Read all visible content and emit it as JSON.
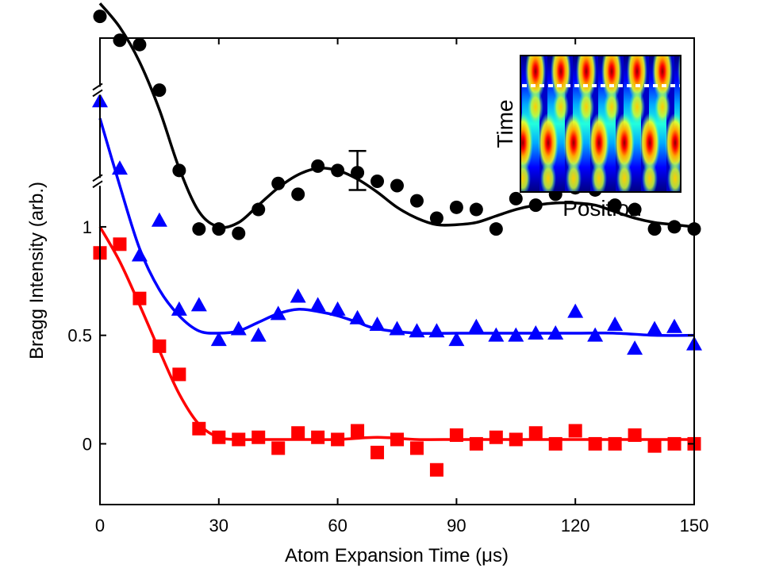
{
  "chart_data": {
    "type": "scatter",
    "xlabel": "Atom Expansion Time (μs)",
    "ylabel": "Bragg Intensity (arb.)",
    "xlim": [
      0,
      150
    ],
    "ylim": [
      -0.28,
      1.87
    ],
    "xticks": [
      0,
      30,
      60,
      90,
      120,
      150
    ],
    "xtick_labels": [
      "0",
      "30",
      "60",
      "90",
      "120",
      "150"
    ],
    "yticks": [
      0,
      0.5,
      1
    ],
    "ytick_labels": [
      "0",
      "0.5",
      "1"
    ],
    "axis_break_marks": [
      1.2,
      1.62
    ],
    "grid": false,
    "legend": "none",
    "series": [
      {
        "color": "#ff0000",
        "marker": "square",
        "x": [
          0,
          5,
          10,
          15,
          20,
          25,
          30,
          35,
          40,
          45,
          50,
          55,
          60,
          65,
          70,
          75,
          80,
          85,
          90,
          95,
          100,
          105,
          110,
          115,
          120,
          125,
          130,
          135,
          140,
          145,
          150
        ],
        "y": [
          0.88,
          0.92,
          0.67,
          0.45,
          0.32,
          0.07,
          0.03,
          0.02,
          0.03,
          -0.02,
          0.05,
          0.03,
          0.02,
          0.06,
          -0.04,
          0.02,
          -0.02,
          -0.12,
          0.04,
          0.0,
          0.03,
          0.02,
          0.05,
          0.0,
          0.06,
          0.0,
          0.0,
          0.04,
          -0.01,
          0.0,
          0.0
        ],
        "fit": {
          "x": [
            0,
            5,
            10,
            15,
            20,
            25,
            30,
            35,
            40,
            50,
            60,
            70,
            80,
            90,
            100,
            110,
            120,
            130,
            140,
            150
          ],
          "y": [
            1.0,
            0.84,
            0.64,
            0.43,
            0.23,
            0.09,
            0.03,
            0.02,
            0.02,
            0.02,
            0.02,
            0.03,
            0.02,
            0.02,
            0.02,
            0.02,
            0.02,
            0.02,
            0.02,
            0.02
          ]
        }
      },
      {
        "color": "#0000ff",
        "marker": "triangle",
        "x": [
          0,
          5,
          10,
          15,
          20,
          25,
          30,
          35,
          40,
          45,
          50,
          55,
          60,
          65,
          70,
          75,
          80,
          85,
          90,
          95,
          100,
          105,
          110,
          115,
          120,
          125,
          130,
          135,
          140,
          145,
          150
        ],
        "y": [
          1.58,
          1.27,
          0.87,
          1.03,
          0.62,
          0.64,
          0.48,
          0.53,
          0.5,
          0.6,
          0.68,
          0.64,
          0.62,
          0.58,
          0.55,
          0.53,
          0.52,
          0.52,
          0.48,
          0.54,
          0.5,
          0.5,
          0.51,
          0.51,
          0.61,
          0.5,
          0.55,
          0.44,
          0.53,
          0.54,
          0.46
        ],
        "fit": {
          "x": [
            0,
            5,
            10,
            15,
            20,
            25,
            30,
            35,
            40,
            45,
            50,
            55,
            60,
            65,
            70,
            80,
            90,
            100,
            110,
            120,
            130,
            140,
            150
          ],
          "y": [
            1.5,
            1.19,
            0.9,
            0.71,
            0.59,
            0.52,
            0.51,
            0.52,
            0.56,
            0.6,
            0.62,
            0.61,
            0.59,
            0.56,
            0.53,
            0.51,
            0.51,
            0.51,
            0.51,
            0.51,
            0.51,
            0.5,
            0.5
          ]
        }
      },
      {
        "color": "#000000",
        "marker": "circle",
        "x": [
          0,
          5,
          10,
          15,
          20,
          25,
          30,
          35,
          40,
          45,
          50,
          55,
          60,
          65,
          70,
          75,
          80,
          85,
          90,
          95,
          100,
          105,
          110,
          115,
          120,
          125,
          130,
          135,
          140,
          145,
          150
        ],
        "y": [
          1.97,
          1.86,
          1.84,
          1.63,
          1.26,
          0.99,
          0.99,
          0.97,
          1.08,
          1.2,
          1.15,
          1.28,
          1.26,
          1.25,
          1.21,
          1.19,
          1.12,
          1.04,
          1.09,
          1.08,
          0.99,
          1.13,
          1.1,
          1.15,
          1.18,
          1.17,
          1.1,
          1.08,
          0.99,
          1.0,
          0.99
        ],
        "fit": {
          "x": [
            0,
            5,
            10,
            15,
            20,
            25,
            30,
            35,
            40,
            45,
            50,
            55,
            60,
            65,
            70,
            75,
            80,
            85,
            90,
            95,
            100,
            105,
            110,
            115,
            120,
            125,
            130,
            135,
            140,
            145,
            150
          ],
          "y": [
            2.03,
            1.92,
            1.76,
            1.54,
            1.27,
            1.07,
            1.0,
            1.02,
            1.1,
            1.18,
            1.24,
            1.27,
            1.26,
            1.22,
            1.16,
            1.09,
            1.04,
            1.01,
            1.01,
            1.02,
            1.05,
            1.08,
            1.1,
            1.11,
            1.11,
            1.1,
            1.07,
            1.04,
            1.02,
            1.01,
            1.0
          ]
        },
        "error_bar": {
          "x": 65,
          "y": 1.25,
          "low": 1.17,
          "high": 1.35
        }
      }
    ],
    "inset": {
      "type": "heatmap",
      "xlabel": "Position",
      "ylabel": "Time"
    }
  }
}
